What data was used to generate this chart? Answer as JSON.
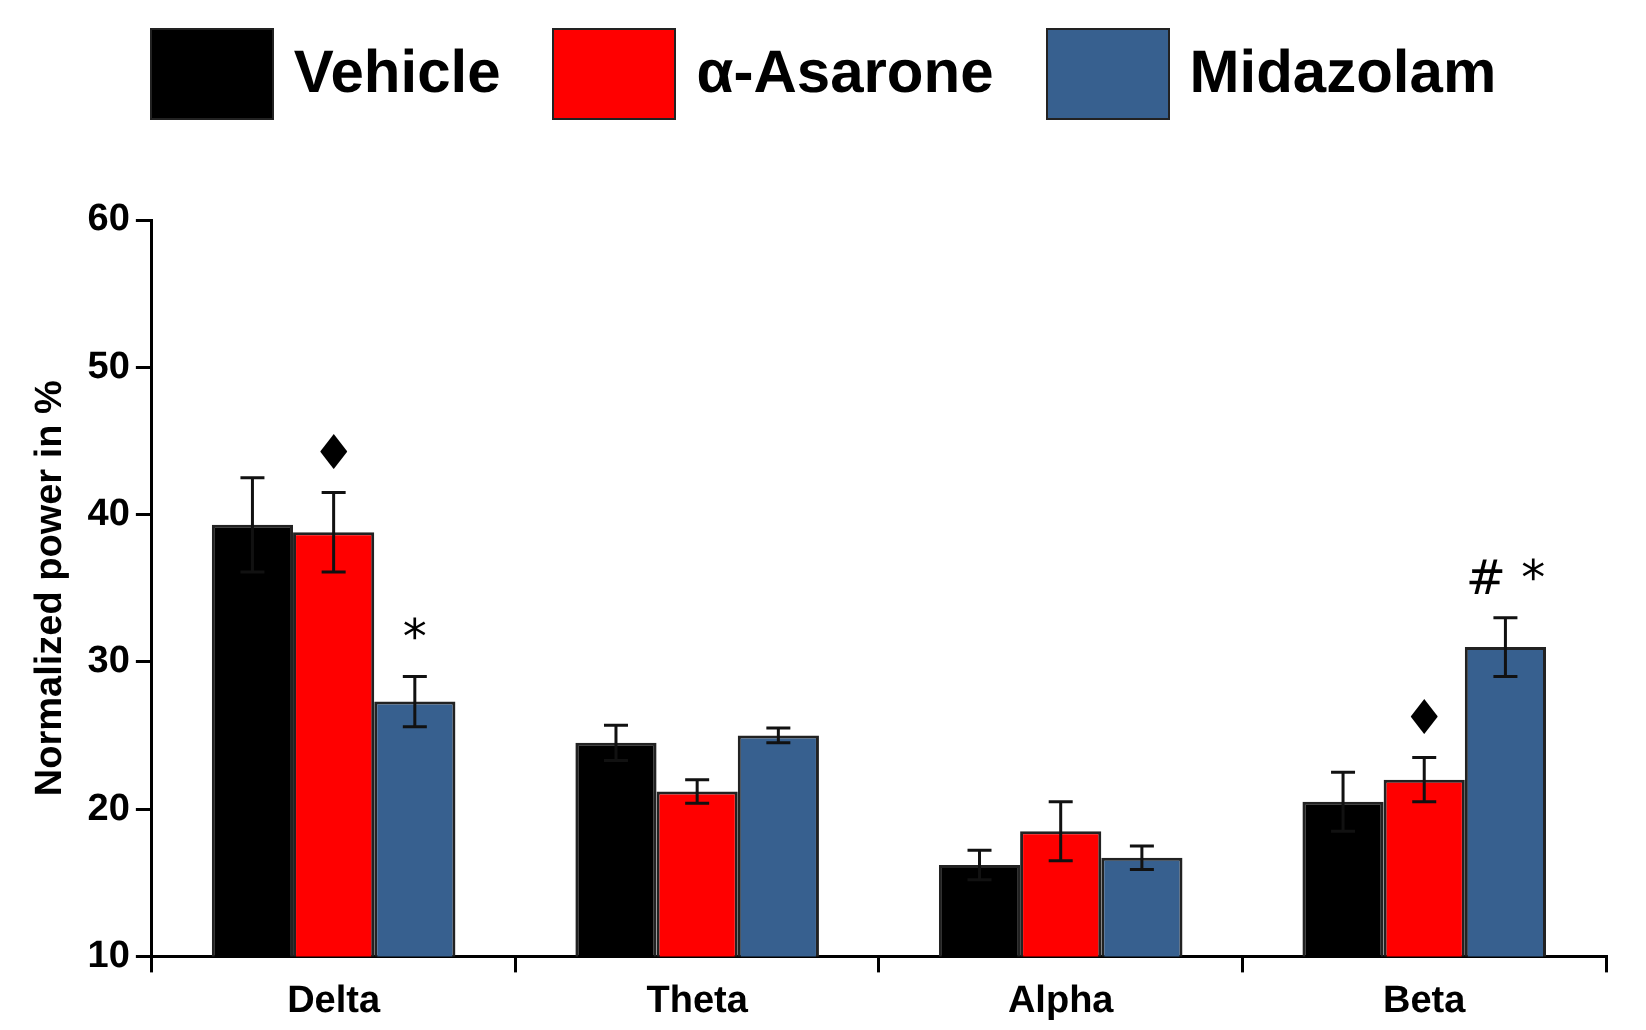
{
  "chart_data": {
    "type": "bar",
    "ylabel": "Normalized power in %",
    "categories": [
      "Delta",
      "Theta",
      "Alpha",
      "Beta"
    ],
    "series": [
      {
        "name": "Vehicle",
        "color": "#000000",
        "values": [
          39.3,
          24.5,
          16.2,
          20.5
        ],
        "errors": [
          3.2,
          1.2,
          1.0,
          2.0
        ]
      },
      {
        "name": "α-Asarone",
        "color": "#ff0000",
        "values": [
          38.8,
          21.2,
          18.5,
          22.0
        ],
        "errors": [
          2.7,
          0.8,
          2.0,
          1.5
        ],
        "value_labels": [
          "♦",
          null,
          null,
          "♦"
        ]
      },
      {
        "name": "Midazolam",
        "color": "#37608f",
        "values": [
          27.3,
          25.0,
          16.7,
          31.0
        ],
        "errors": [
          1.7,
          0.5,
          0.8,
          2.0
        ],
        "value_labels": [
          "*",
          null,
          null,
          "# *"
        ]
      }
    ],
    "ylim": [
      10,
      60
    ],
    "yticks": [
      10,
      20,
      30,
      40,
      50,
      60
    ],
    "grid": false,
    "legend": "top"
  }
}
